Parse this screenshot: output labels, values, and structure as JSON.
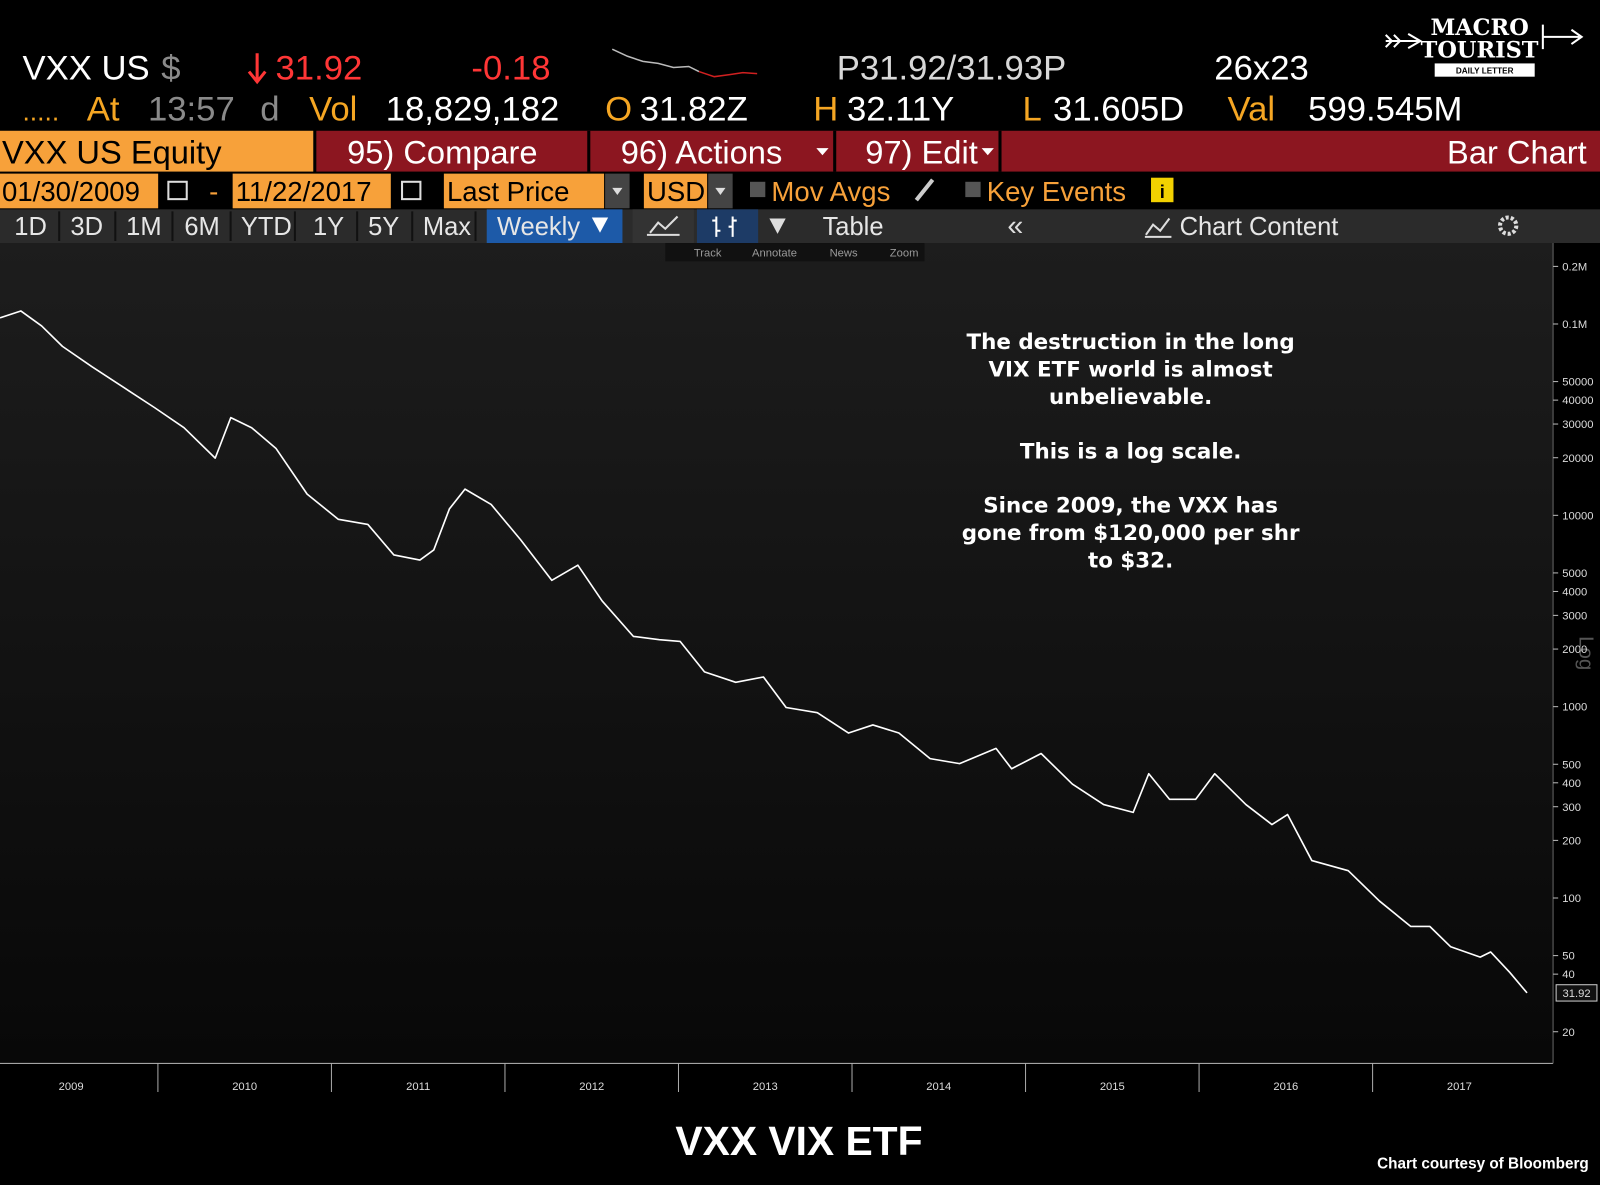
{
  "header": {
    "ticker": "VXX US",
    "currency": "$",
    "last": "31.92",
    "change": "-0.18",
    "bid_ask": "P31.92/31.93P",
    "size": "26x23",
    "at_label": "At",
    "time": "13:57",
    "time_flag": "d",
    "vol_label": "Vol",
    "volume": "18,829,182",
    "open_label": "O",
    "open": "31.82Z",
    "high_label": "H",
    "high": "32.11Y",
    "low_label": "L",
    "low": "31.605D",
    "val_label": "Val",
    "val": "599.545M"
  },
  "logo": {
    "line1": "MACRO",
    "line2": "TOURIST",
    "tagline": "DAILY LETTER"
  },
  "toolbar": {
    "security": "VXX US Equity",
    "buttons": [
      "95) Compare",
      "96) Actions",
      "97) Edit"
    ],
    "view": "Bar Chart"
  },
  "range": {
    "start": "01/30/2009",
    "separator": "-",
    "end": "11/22/2017",
    "field": "Last Price",
    "currency": "USD",
    "mov_avgs": "Mov Avgs",
    "key_events": "Key Events"
  },
  "periods": [
    "1D",
    "3D",
    "1M",
    "6M",
    "YTD",
    "1Y",
    "5Y",
    "Max"
  ],
  "frequency": "Weekly",
  "table": "Table",
  "chart_content": "Chart Content",
  "chart_tools": [
    "Track",
    "Annotate",
    "News",
    "Zoom"
  ],
  "chart_data": {
    "type": "line",
    "title": "VXX VIX ETF",
    "source": "Chart courtesy of Bloomberg",
    "scale_label": "Log",
    "annotation": [
      [
        "The destruction in the long",
        "VIX ETF world is almost",
        "unbelievable."
      ],
      [
        "This is a log scale."
      ],
      [
        "Since 2009, the VXX has",
        "gone from $120,000 per shr",
        "to $32."
      ]
    ],
    "log_scale": true,
    "grid": false,
    "x": [
      2009.09,
      2009.21,
      2009.33,
      2009.45,
      2009.62,
      2009.8,
      2009.98,
      2010.15,
      2010.33,
      2010.42,
      2010.54,
      2010.68,
      2010.86,
      2011.04,
      2011.21,
      2011.36,
      2011.51,
      2011.59,
      2011.68,
      2011.77,
      2011.92,
      2012.09,
      2012.27,
      2012.42,
      2012.56,
      2012.74,
      2012.89,
      2013.01,
      2013.15,
      2013.33,
      2013.49,
      2013.62,
      2013.8,
      2013.98,
      2014.12,
      2014.27,
      2014.45,
      2014.62,
      2014.83,
      2014.92,
      2015.09,
      2015.27,
      2015.45,
      2015.62,
      2015.71,
      2015.83,
      2015.98,
      2016.09,
      2016.27,
      2016.42,
      2016.51,
      2016.65,
      2016.86,
      2017.04,
      2017.22,
      2017.33,
      2017.45,
      2017.62,
      2017.68,
      2017.79,
      2017.89
    ],
    "series": [
      {
        "name": "VXX US Equity",
        "color": "#ffffff",
        "values": [
          107700,
          117000,
          97700,
          76400,
          59800,
          46800,
          36600,
          28700,
          19900,
          32400,
          28700,
          22400,
          12900,
          9530,
          8960,
          6210,
          5840,
          6590,
          10800,
          13700,
          11400,
          7450,
          4570,
          5490,
          3570,
          2330,
          2240,
          2190,
          1520,
          1340,
          1430,
          990,
          930,
          728,
          802,
          728,
          535,
          504,
          605,
          474,
          569,
          394,
          308,
          280,
          446,
          328,
          328,
          446,
          308,
          242,
          273,
          157,
          139,
          96.4,
          71,
          71,
          55.6,
          49.1,
          52.2,
          40.9,
          31.92
        ]
      }
    ],
    "xlim": [
      2009.09,
      2018.04
    ],
    "xticks": [
      2009,
      2010,
      2011,
      2012,
      2013,
      2014,
      2015,
      2016,
      2017
    ],
    "ylim": [
      14,
      265000
    ],
    "yticks": [
      {
        "value": 200000,
        "label": "0.2M"
      },
      {
        "value": 100000,
        "label": "0.1M"
      },
      50000,
      40000,
      30000,
      20000,
      10000,
      5000,
      4000,
      3000,
      2000,
      1000,
      500,
      400,
      300,
      200,
      100,
      50,
      40,
      20
    ]
  }
}
